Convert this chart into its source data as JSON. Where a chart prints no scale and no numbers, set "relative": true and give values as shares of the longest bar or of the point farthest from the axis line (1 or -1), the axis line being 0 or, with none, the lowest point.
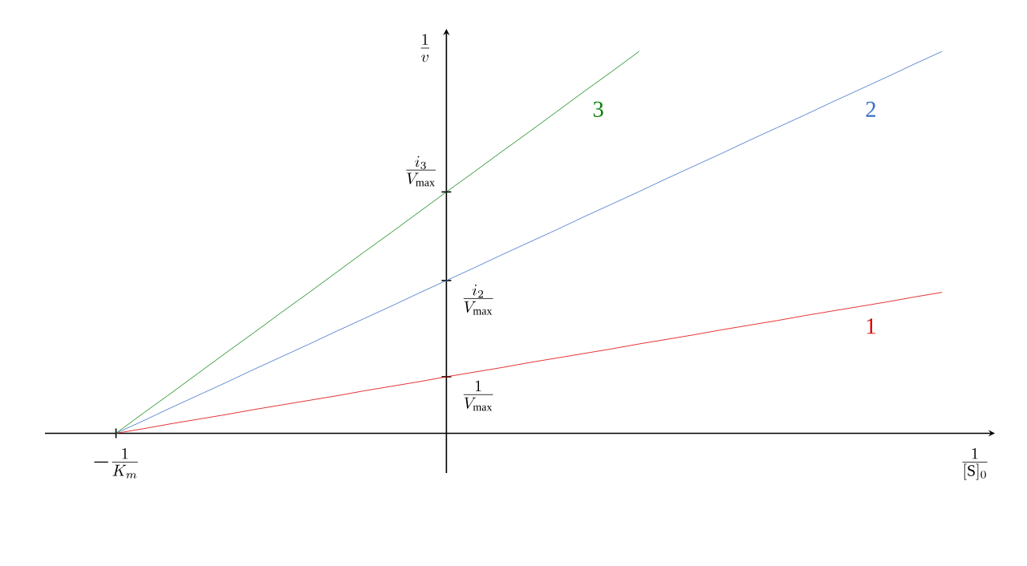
{
  "chart_data": {
    "type": "line",
    "relative": true,
    "xlabel": "\\frac{1}{[\\mathrm{S}]_0}",
    "ylabel": "\\frac{1}{v}",
    "categories": [
      null,
      null,
      null,
      null,
      null,
      null,
      null,
      null,
      null,
      null,
      null,
      null,
      null,
      null,
      null,
      null,
      null,
      null,
      null,
      null,
      null,
      null,
      null,
      null,
      null,
      null,
      null,
      null,
      null,
      null,
      null
    ],
    "annotations": [
      "-\\frac{1}{K_m}",
      "\\frac{1}{V_{\\max}}",
      "\\frac{i_2}{V_{\\max}}",
      "\\frac{i_3}{V_{\\max}}"
    ],
    "marker": "none",
    "line_style": "solid",
    "series": [
      {
        "name": "1",
        "color": "#e00000",
        "values": [
          0,
          0.012,
          0.025,
          0.037,
          0.049,
          0.062,
          0.074,
          0.086,
          0.098,
          0.111,
          0.123,
          0.135,
          0.148,
          0.16,
          0.172,
          0.185,
          0.197,
          0.209,
          0.221,
          0.234,
          0.246,
          0.258,
          0.271,
          0.283,
          0.295,
          0.308,
          0.32,
          0.332,
          0.344,
          0.357,
          0.369
        ]
      },
      {
        "name": "2",
        "color": "#3a6fc8",
        "values": [
          0,
          0.033,
          0.067,
          0.1,
          0.133,
          0.167,
          0.2,
          0.233,
          0.267,
          0.3,
          0.333,
          0.367,
          0.4,
          0.433,
          0.467,
          0.5,
          0.533,
          0.567,
          0.6,
          0.633,
          0.667,
          0.7,
          0.733,
          0.767,
          0.8,
          0.833,
          0.867,
          0.9,
          0.933,
          0.967,
          1
        ]
      },
      {
        "name": "3",
        "color": "#008000",
        "values": [
          0,
          0.053,
          0.105,
          0.158,
          0.211,
          0.263,
          0.316,
          0.368,
          0.421,
          0.474,
          0.526,
          0.579,
          0.632,
          0.684,
          0.737,
          0.789,
          0.842,
          0.895,
          0.947,
          1,
          null,
          null,
          null,
          null,
          null,
          null,
          null,
          null,
          null,
          null,
          null
        ]
      }
    ]
  }
}
